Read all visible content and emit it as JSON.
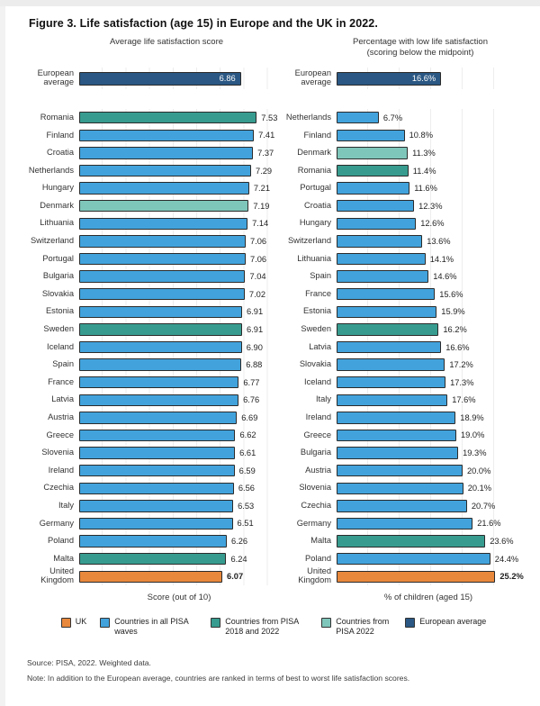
{
  "title": "Figure 3. Life satisfaction (age 15) in Europe and the UK in 2022.",
  "colors": {
    "uk": "#E8883C",
    "all_waves": "#42A3DC",
    "pisa_2018_2022": "#379C8F",
    "pisa_2022": "#7FC6BA",
    "european_average": "#2A5783"
  },
  "chart_data": [
    {
      "type": "bar",
      "orientation": "horizontal",
      "title": "Average life satisfaction score",
      "xlabel": "Score (out of 10)",
      "xlim": [
        0,
        8
      ],
      "grid": true,
      "average": {
        "label": "European average",
        "value": 6.86,
        "value_label": "6.86",
        "category": "european_average"
      },
      "rows": [
        {
          "label": "Romania",
          "value": 7.53,
          "value_label": "7.53",
          "category": "pisa_2018_2022"
        },
        {
          "label": "Finland",
          "value": 7.41,
          "value_label": "7.41",
          "category": "all_waves"
        },
        {
          "label": "Croatia",
          "value": 7.37,
          "value_label": "7.37",
          "category": "all_waves"
        },
        {
          "label": "Netherlands",
          "value": 7.29,
          "value_label": "7.29",
          "category": "all_waves"
        },
        {
          "label": "Hungary",
          "value": 7.21,
          "value_label": "7.21",
          "category": "all_waves"
        },
        {
          "label": "Denmark",
          "value": 7.19,
          "value_label": "7.19",
          "category": "pisa_2022"
        },
        {
          "label": "Lithuania",
          "value": 7.14,
          "value_label": "7.14",
          "category": "all_waves"
        },
        {
          "label": "Switzerland",
          "value": 7.06,
          "value_label": "7.06",
          "category": "all_waves"
        },
        {
          "label": "Portugal",
          "value": 7.06,
          "value_label": "7.06",
          "category": "all_waves"
        },
        {
          "label": "Bulgaria",
          "value": 7.04,
          "value_label": "7.04",
          "category": "all_waves"
        },
        {
          "label": "Slovakia",
          "value": 7.02,
          "value_label": "7.02",
          "category": "all_waves"
        },
        {
          "label": "Estonia",
          "value": 6.91,
          "value_label": "6.91",
          "category": "all_waves"
        },
        {
          "label": "Sweden",
          "value": 6.91,
          "value_label": "6.91",
          "category": "pisa_2018_2022"
        },
        {
          "label": "Iceland",
          "value": 6.9,
          "value_label": "6.90",
          "category": "all_waves"
        },
        {
          "label": "Spain",
          "value": 6.88,
          "value_label": "6.88",
          "category": "all_waves"
        },
        {
          "label": "France",
          "value": 6.77,
          "value_label": "6.77",
          "category": "all_waves"
        },
        {
          "label": "Latvia",
          "value": 6.76,
          "value_label": "6.76",
          "category": "all_waves"
        },
        {
          "label": "Austria",
          "value": 6.69,
          "value_label": "6.69",
          "category": "all_waves"
        },
        {
          "label": "Greece",
          "value": 6.62,
          "value_label": "6.62",
          "category": "all_waves"
        },
        {
          "label": "Slovenia",
          "value": 6.61,
          "value_label": "6.61",
          "category": "all_waves"
        },
        {
          "label": "Ireland",
          "value": 6.59,
          "value_label": "6.59",
          "category": "all_waves"
        },
        {
          "label": "Czechia",
          "value": 6.56,
          "value_label": "6.56",
          "category": "all_waves"
        },
        {
          "label": "Italy",
          "value": 6.53,
          "value_label": "6.53",
          "category": "all_waves"
        },
        {
          "label": "Germany",
          "value": 6.51,
          "value_label": "6.51",
          "category": "all_waves"
        },
        {
          "label": "Poland",
          "value": 6.26,
          "value_label": "6.26",
          "category": "all_waves"
        },
        {
          "label": "Malta",
          "value": 6.24,
          "value_label": "6.24",
          "category": "pisa_2018_2022"
        },
        {
          "label": "United Kingdom",
          "value": 6.07,
          "value_label": "6.07",
          "category": "uk"
        }
      ]
    },
    {
      "type": "bar",
      "orientation": "horizontal",
      "title": "Percentage with low life satisfaction",
      "title_line2": "(scoring below the midpoint)",
      "xlabel": "% of children (aged 15)",
      "xlim": [
        0,
        30
      ],
      "grid": true,
      "average": {
        "label": "European average",
        "value": 16.6,
        "value_label": "16.6%",
        "category": "european_average"
      },
      "rows": [
        {
          "label": "Netherlands",
          "value": 6.7,
          "value_label": "6.7%",
          "category": "all_waves"
        },
        {
          "label": "Finland",
          "value": 10.8,
          "value_label": "10.8%",
          "category": "all_waves"
        },
        {
          "label": "Denmark",
          "value": 11.3,
          "value_label": "11.3%",
          "category": "pisa_2022"
        },
        {
          "label": "Romania",
          "value": 11.4,
          "value_label": "11.4%",
          "category": "pisa_2018_2022"
        },
        {
          "label": "Portugal",
          "value": 11.6,
          "value_label": "11.6%",
          "category": "all_waves"
        },
        {
          "label": "Croatia",
          "value": 12.3,
          "value_label": "12.3%",
          "category": "all_waves"
        },
        {
          "label": "Hungary",
          "value": 12.6,
          "value_label": "12.6%",
          "category": "all_waves"
        },
        {
          "label": "Switzerland",
          "value": 13.6,
          "value_label": "13.6%",
          "category": "all_waves"
        },
        {
          "label": "Lithuania",
          "value": 14.1,
          "value_label": "14.1%",
          "category": "all_waves"
        },
        {
          "label": "Spain",
          "value": 14.6,
          "value_label": "14.6%",
          "category": "all_waves"
        },
        {
          "label": "France",
          "value": 15.6,
          "value_label": "15.6%",
          "category": "all_waves"
        },
        {
          "label": "Estonia",
          "value": 15.9,
          "value_label": "15.9%",
          "category": "all_waves"
        },
        {
          "label": "Sweden",
          "value": 16.2,
          "value_label": "16.2%",
          "category": "pisa_2018_2022"
        },
        {
          "label": "Latvia",
          "value": 16.6,
          "value_label": "16.6%",
          "category": "all_waves"
        },
        {
          "label": "Slovakia",
          "value": 17.2,
          "value_label": "17.2%",
          "category": "all_waves"
        },
        {
          "label": "Iceland",
          "value": 17.3,
          "value_label": "17.3%",
          "category": "all_waves"
        },
        {
          "label": "Italy",
          "value": 17.6,
          "value_label": "17.6%",
          "category": "all_waves"
        },
        {
          "label": "Ireland",
          "value": 18.9,
          "value_label": "18.9%",
          "category": "all_waves"
        },
        {
          "label": "Greece",
          "value": 19.0,
          "value_label": "19.0%",
          "category": "all_waves"
        },
        {
          "label": "Bulgaria",
          "value": 19.3,
          "value_label": "19.3%",
          "category": "all_waves"
        },
        {
          "label": "Austria",
          "value": 20.0,
          "value_label": "20.0%",
          "category": "all_waves"
        },
        {
          "label": "Slovenia",
          "value": 20.1,
          "value_label": "20.1%",
          "category": "all_waves"
        },
        {
          "label": "Czechia",
          "value": 20.7,
          "value_label": "20.7%",
          "category": "all_waves"
        },
        {
          "label": "Germany",
          "value": 21.6,
          "value_label": "21.6%",
          "category": "all_waves"
        },
        {
          "label": "Malta",
          "value": 23.6,
          "value_label": "23.6%",
          "category": "pisa_2018_2022"
        },
        {
          "label": "Poland",
          "value": 24.4,
          "value_label": "24.4%",
          "category": "all_waves"
        },
        {
          "label": "United Kingdom",
          "value": 25.2,
          "value_label": "25.2%",
          "category": "uk"
        }
      ]
    }
  ],
  "legend": {
    "items": [
      {
        "label": "UK",
        "category": "uk",
        "wrap": false
      },
      {
        "label": "Countries in all PISA waves",
        "category": "all_waves",
        "wrap": true
      },
      {
        "label": "Countries from PISA 2018 and 2022",
        "category": "pisa_2018_2022",
        "wrap": true
      },
      {
        "label": "Countries from PISA 2022",
        "category": "pisa_2022",
        "wrap": true
      },
      {
        "label": "European average",
        "category": "european_average",
        "wrap": false
      }
    ]
  },
  "footer": {
    "source": "Source: PISA, 2022. Weighted data.",
    "note": "Note: In addition to the European average, countries are ranked in terms of best to worst life satisfaction scores."
  }
}
